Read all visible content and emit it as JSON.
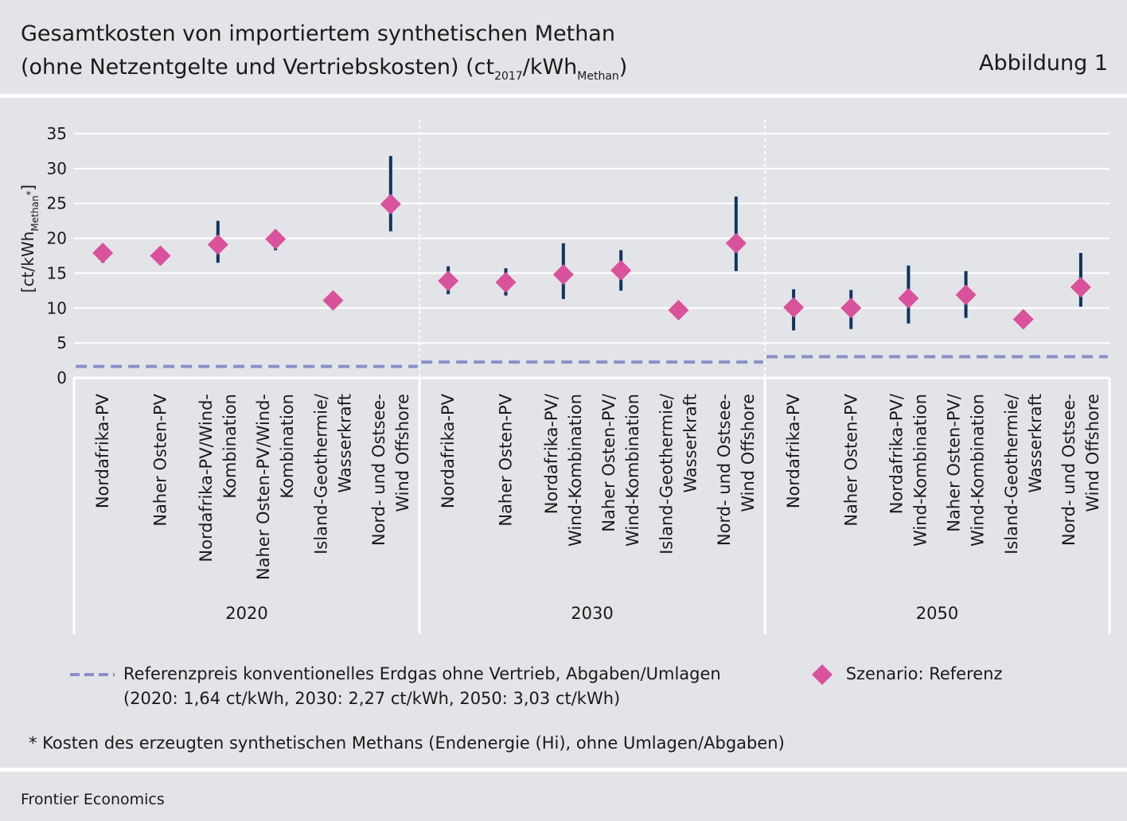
{
  "header": {
    "title_line1": "Gesamtkosten von importiertem synthetischen Methan",
    "title_line2_a": "(ohne Netzentgelte und Vertriebskosten) (ct",
    "title_line2_sub1": "2017",
    "title_line2_b": "/kWh",
    "title_line2_sub2": "Methan",
    "title_line2_c": ")",
    "figure_label": "Abbildung 1"
  },
  "chart_data": {
    "type": "scatter",
    "ylabel_a": "[ct/kWh",
    "ylabel_sub": "Methan",
    "ylabel_sup": "*",
    "ylabel_b": "]",
    "ylim": [
      0,
      35
    ],
    "yticks": [
      0,
      5,
      10,
      15,
      20,
      25,
      30,
      35
    ],
    "grid": true,
    "legend_position": "bottom",
    "colors": {
      "marker": "#d9529b",
      "range": "#0f3461",
      "reference": "#8891c6",
      "grid": "#ffffff"
    },
    "groups": [
      {
        "year": "2020",
        "reference_price": 1.64,
        "items": [
          {
            "label": [
              "Nordafrika-PV"
            ],
            "value": 17.9,
            "low": 16.5,
            "high": 19.2
          },
          {
            "label": [
              "Naher Osten-PV"
            ],
            "value": 17.5,
            "low": 16.8,
            "high": 18.8
          },
          {
            "label": [
              "Nordafrika-PV/Wind-",
              "Kombination"
            ],
            "value": 19.1,
            "low": 16.5,
            "high": 22.5
          },
          {
            "label": [
              "Naher Osten-PV/Wind-",
              "Kombination"
            ],
            "value": 19.9,
            "low": 18.3,
            "high": 21.2
          },
          {
            "label": [
              "Island-Geothermie/",
              "Wasserkraft"
            ],
            "value": 11.1,
            "low": 11.1,
            "high": 11.1
          },
          {
            "label": [
              "Nord- und Ostsee-",
              "Wind Offshore"
            ],
            "value": 24.9,
            "low": 21.0,
            "high": 31.8
          }
        ]
      },
      {
        "year": "2030",
        "reference_price": 2.27,
        "items": [
          {
            "label": [
              "Nordafrika-PV"
            ],
            "value": 13.9,
            "low": 12.0,
            "high": 16.0
          },
          {
            "label": [
              "Naher Osten-PV"
            ],
            "value": 13.7,
            "low": 11.8,
            "high": 15.7
          },
          {
            "label": [
              "Nordafrika-PV/",
              "Wind-Kombination"
            ],
            "value": 14.8,
            "low": 11.3,
            "high": 19.3
          },
          {
            "label": [
              "Naher Osten-PV/",
              "Wind-Kombination"
            ],
            "value": 15.4,
            "low": 12.5,
            "high": 18.3
          },
          {
            "label": [
              "Island-Geothermie/",
              "Wasserkraft"
            ],
            "value": 9.7,
            "low": 9.7,
            "high": 9.7
          },
          {
            "label": [
              "Nord- und Ostsee-",
              "Wind Offshore"
            ],
            "value": 19.3,
            "low": 15.3,
            "high": 26.0
          }
        ]
      },
      {
        "year": "2050",
        "reference_price": 3.03,
        "items": [
          {
            "label": [
              "Nordafrika-PV"
            ],
            "value": 10.1,
            "low": 6.8,
            "high": 12.7
          },
          {
            "label": [
              "Naher Osten-PV"
            ],
            "value": 10.0,
            "low": 7.0,
            "high": 12.6
          },
          {
            "label": [
              "Nordafrika-PV/",
              "Wind-Kombination"
            ],
            "value": 11.4,
            "low": 7.8,
            "high": 16.1
          },
          {
            "label": [
              "Naher Osten-PV/",
              "Wind-Kombination"
            ],
            "value": 11.9,
            "low": 8.6,
            "high": 15.3
          },
          {
            "label": [
              "Island-Geothermie/",
              "Wasserkraft"
            ],
            "value": 8.4,
            "low": 8.4,
            "high": 8.4
          },
          {
            "label": [
              "Nord- und Ostsee-",
              "Wind Offshore"
            ],
            "value": 13.0,
            "low": 10.2,
            "high": 17.9
          }
        ]
      }
    ]
  },
  "legend": {
    "reference_line1": "Referenzpreis konventionelles Erdgas ohne Vertrieb, Abgaben/Umlagen",
    "reference_line2": "(2020: 1,64 ct/kWh,  2030: 2,27 ct/kWh, 2050: 3,03 ct/kWh)",
    "scenario": "Szenario: Referenz"
  },
  "footnote": "* Kosten des erzeugten synthetischen Methans (Endenergie (Hi), ohne Umlagen/Abgaben)",
  "source": "Frontier Economics"
}
